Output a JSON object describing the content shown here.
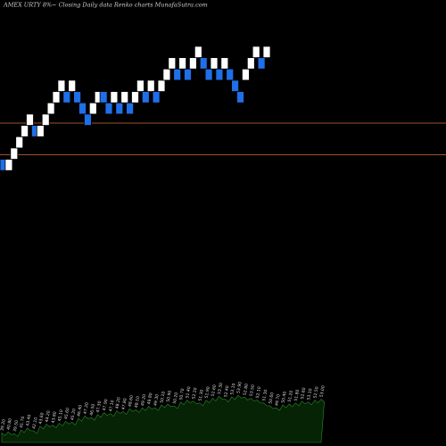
{
  "header": {
    "title": "AMEX  URTY 8%~  Closing Daily data  Renko  charts MunafaSutra.com"
  },
  "colors": {
    "background": "#000000",
    "up_brick": "#ffffff",
    "down_brick": "#1f6fe8",
    "resistance_line": "#a0522d",
    "volume_fill": "#062306",
    "volume_stroke": "#2a8a2a"
  },
  "chart_data": {
    "type": "renko",
    "brick_size": 1,
    "price_range": [
      20,
      58
    ],
    "levels": [
      {
        "name": "upper-line",
        "value": 48.2
      },
      {
        "name": "lower-line",
        "value": 45.4
      }
    ],
    "bricks": [
      {
        "dir": "down",
        "value": 44
      },
      {
        "dir": "up",
        "value": 44
      },
      {
        "dir": "up",
        "value": 45
      },
      {
        "dir": "up",
        "value": 46
      },
      {
        "dir": "up",
        "value": 47
      },
      {
        "dir": "up",
        "value": 48
      },
      {
        "dir": "down",
        "value": 47
      },
      {
        "dir": "up",
        "value": 47
      },
      {
        "dir": "up",
        "value": 48
      },
      {
        "dir": "up",
        "value": 49
      },
      {
        "dir": "up",
        "value": 50
      },
      {
        "dir": "up",
        "value": 51
      },
      {
        "dir": "down",
        "value": 50
      },
      {
        "dir": "up",
        "value": 51
      },
      {
        "dir": "down",
        "value": 50
      },
      {
        "dir": "down",
        "value": 49
      },
      {
        "dir": "down",
        "value": 48
      },
      {
        "dir": "up",
        "value": 49
      },
      {
        "dir": "up",
        "value": 50
      },
      {
        "dir": "down",
        "value": 50
      },
      {
        "dir": "down",
        "value": 49
      },
      {
        "dir": "up",
        "value": 50
      },
      {
        "dir": "down",
        "value": 49
      },
      {
        "dir": "up",
        "value": 50
      },
      {
        "dir": "down",
        "value": 49
      },
      {
        "dir": "up",
        "value": 50
      },
      {
        "dir": "up",
        "value": 51
      },
      {
        "dir": "down",
        "value": 50
      },
      {
        "dir": "up",
        "value": 51
      },
      {
        "dir": "down",
        "value": 50
      },
      {
        "dir": "up",
        "value": 51
      },
      {
        "dir": "up",
        "value": 52
      },
      {
        "dir": "up",
        "value": 53
      },
      {
        "dir": "down",
        "value": 52
      },
      {
        "dir": "up",
        "value": 53
      },
      {
        "dir": "down",
        "value": 52
      },
      {
        "dir": "up",
        "value": 53
      },
      {
        "dir": "up",
        "value": 54
      },
      {
        "dir": "down",
        "value": 53
      },
      {
        "dir": "down",
        "value": 52
      },
      {
        "dir": "up",
        "value": 53
      },
      {
        "dir": "down",
        "value": 52
      },
      {
        "dir": "up",
        "value": 53
      },
      {
        "dir": "down",
        "value": 52
      },
      {
        "dir": "down",
        "value": 51
      },
      {
        "dir": "down",
        "value": 50
      },
      {
        "dir": "up",
        "value": 52
      },
      {
        "dir": "up",
        "value": 53
      },
      {
        "dir": "up",
        "value": 54
      },
      {
        "dir": "down",
        "value": 53
      },
      {
        "dir": "up",
        "value": 54
      }
    ],
    "volume": {
      "values": [
        20,
        22,
        18,
        26,
        30,
        24,
        34,
        38,
        36,
        40,
        44,
        42,
        50,
        55,
        52,
        58,
        62,
        60,
        66,
        64,
        70,
        68,
        72,
        75,
        72,
        78,
        80,
        76,
        84,
        88,
        86,
        82,
        88,
        92,
        96,
        90,
        95,
        98,
        94,
        92,
        88,
        82,
        76,
        72,
        78,
        80,
        82,
        86,
        84,
        88,
        90
      ],
      "labels": [
        "39.20",
        "40.80",
        "39.50",
        "41.70",
        "43.40",
        "42.10",
        "43.60",
        "44.20",
        "43.80",
        "45.10",
        "45.60",
        "45.20",
        "46.40",
        "47.20",
        "46.50",
        "47.30",
        "47.90",
        "47.10",
        "48.20",
        "47.80",
        "48.60",
        "48.10",
        "49.20",
        "49.80",
        "49.30",
        "50.10",
        "50.90",
        "50.20",
        "50.70",
        "51.40",
        "52.20",
        "51.30",
        "51.90",
        "52.60",
        "53.30",
        "52.40",
        "53.10",
        "53.90",
        "52.80",
        "53.50",
        "52.10",
        "51.30",
        "50.60",
        "49.70",
        "50.40",
        "51.20",
        "51.80",
        "52.60",
        "53.10",
        "52.50",
        "53.00"
      ]
    }
  }
}
